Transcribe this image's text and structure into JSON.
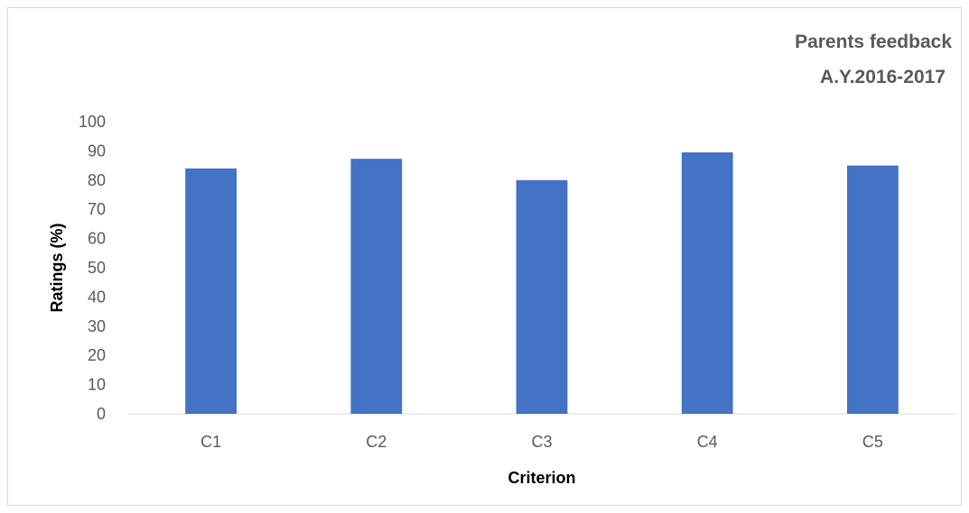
{
  "chart_data": {
    "type": "bar",
    "title": [
      "Parents feedback",
      "A.Y.2016-2017"
    ],
    "xlabel": "Criterion",
    "ylabel": "Ratings (%)",
    "categories": [
      "C1",
      "C2",
      "C3",
      "C4",
      "C5"
    ],
    "values": [
      84,
      87.3,
      80,
      89.5,
      85
    ],
    "ylim": [
      0,
      100
    ],
    "yticks": [
      0,
      10,
      20,
      30,
      40,
      50,
      60,
      70,
      80,
      90,
      100
    ],
    "grid": false,
    "legend": "none",
    "bar_color": "#4472c4"
  }
}
